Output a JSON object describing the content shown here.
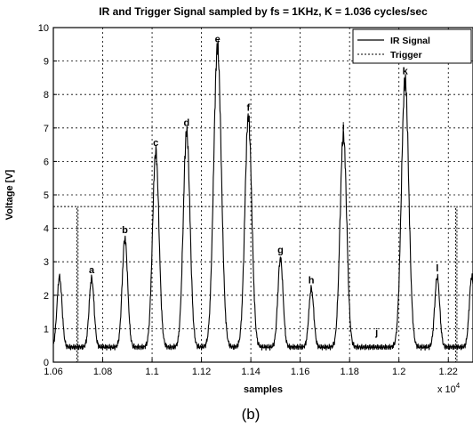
{
  "chart_data": {
    "type": "line",
    "title": "IR and Trigger Signal sampled by fs = 1KHz, K = 1.036 cycles/sec",
    "xlabel": "samples",
    "ylabel": "Voltage [V]",
    "x_multiplier_label": "x 10",
    "x_multiplier_exponent": "4",
    "xlim": [
      10600,
      12300
    ],
    "ylim": [
      0,
      10
    ],
    "grid": true,
    "legend_position": "top-right",
    "x_tick_labels": [
      "1.06",
      "1.08",
      "1.1",
      "1.12",
      "1.14",
      "1.16",
      "1.18",
      "1.2",
      "1.22"
    ],
    "x_tick_values": [
      10600,
      10800,
      11000,
      11200,
      11400,
      11600,
      11800,
      12000,
      12200
    ],
    "y_tick_labels": [
      "0",
      "1",
      "2",
      "3",
      "4",
      "5",
      "6",
      "7",
      "8",
      "9",
      "10"
    ],
    "y_tick_values": [
      0,
      1,
      2,
      3,
      4,
      5,
      6,
      7,
      8,
      9,
      10
    ],
    "baseline": 0.45,
    "series": [
      {
        "name": "IR Signal",
        "style": "solid",
        "color": "#000000",
        "peaks": [
          {
            "x": 10625,
            "y": 2.55,
            "label": ""
          },
          {
            "x": 10755,
            "y": 2.5,
            "label": "a"
          },
          {
            "x": 10890,
            "y": 3.7,
            "label": "b"
          },
          {
            "x": 11015,
            "y": 6.3,
            "label": "c"
          },
          {
            "x": 11140,
            "y": 6.9,
            "label": "d"
          },
          {
            "x": 11265,
            "y": 9.4,
            "label": "e"
          },
          {
            "x": 11390,
            "y": 7.35,
            "label": "f"
          },
          {
            "x": 11520,
            "y": 3.1,
            "label": "g"
          },
          {
            "x": 11645,
            "y": 2.2,
            "label": "h"
          },
          {
            "x": 11775,
            "y": 6.8,
            "label": "i"
          },
          {
            "x": 12025,
            "y": 8.45,
            "label": "k"
          },
          {
            "x": 12155,
            "y": 2.55,
            "label": "l"
          },
          {
            "x": 12295,
            "y": 2.55,
            "label": ""
          }
        ],
        "annotations": [
          {
            "x": 11910,
            "y": 0.8,
            "label": "j"
          }
        ]
      },
      {
        "name": "Trigger",
        "style": "dashed",
        "color": "#000000",
        "high": 4.65,
        "low": 0,
        "pulses": [
          {
            "from": 10695,
            "to": 10700
          },
          {
            "from": 12230,
            "to": 12235
          }
        ]
      }
    ]
  },
  "caption": "(b)"
}
